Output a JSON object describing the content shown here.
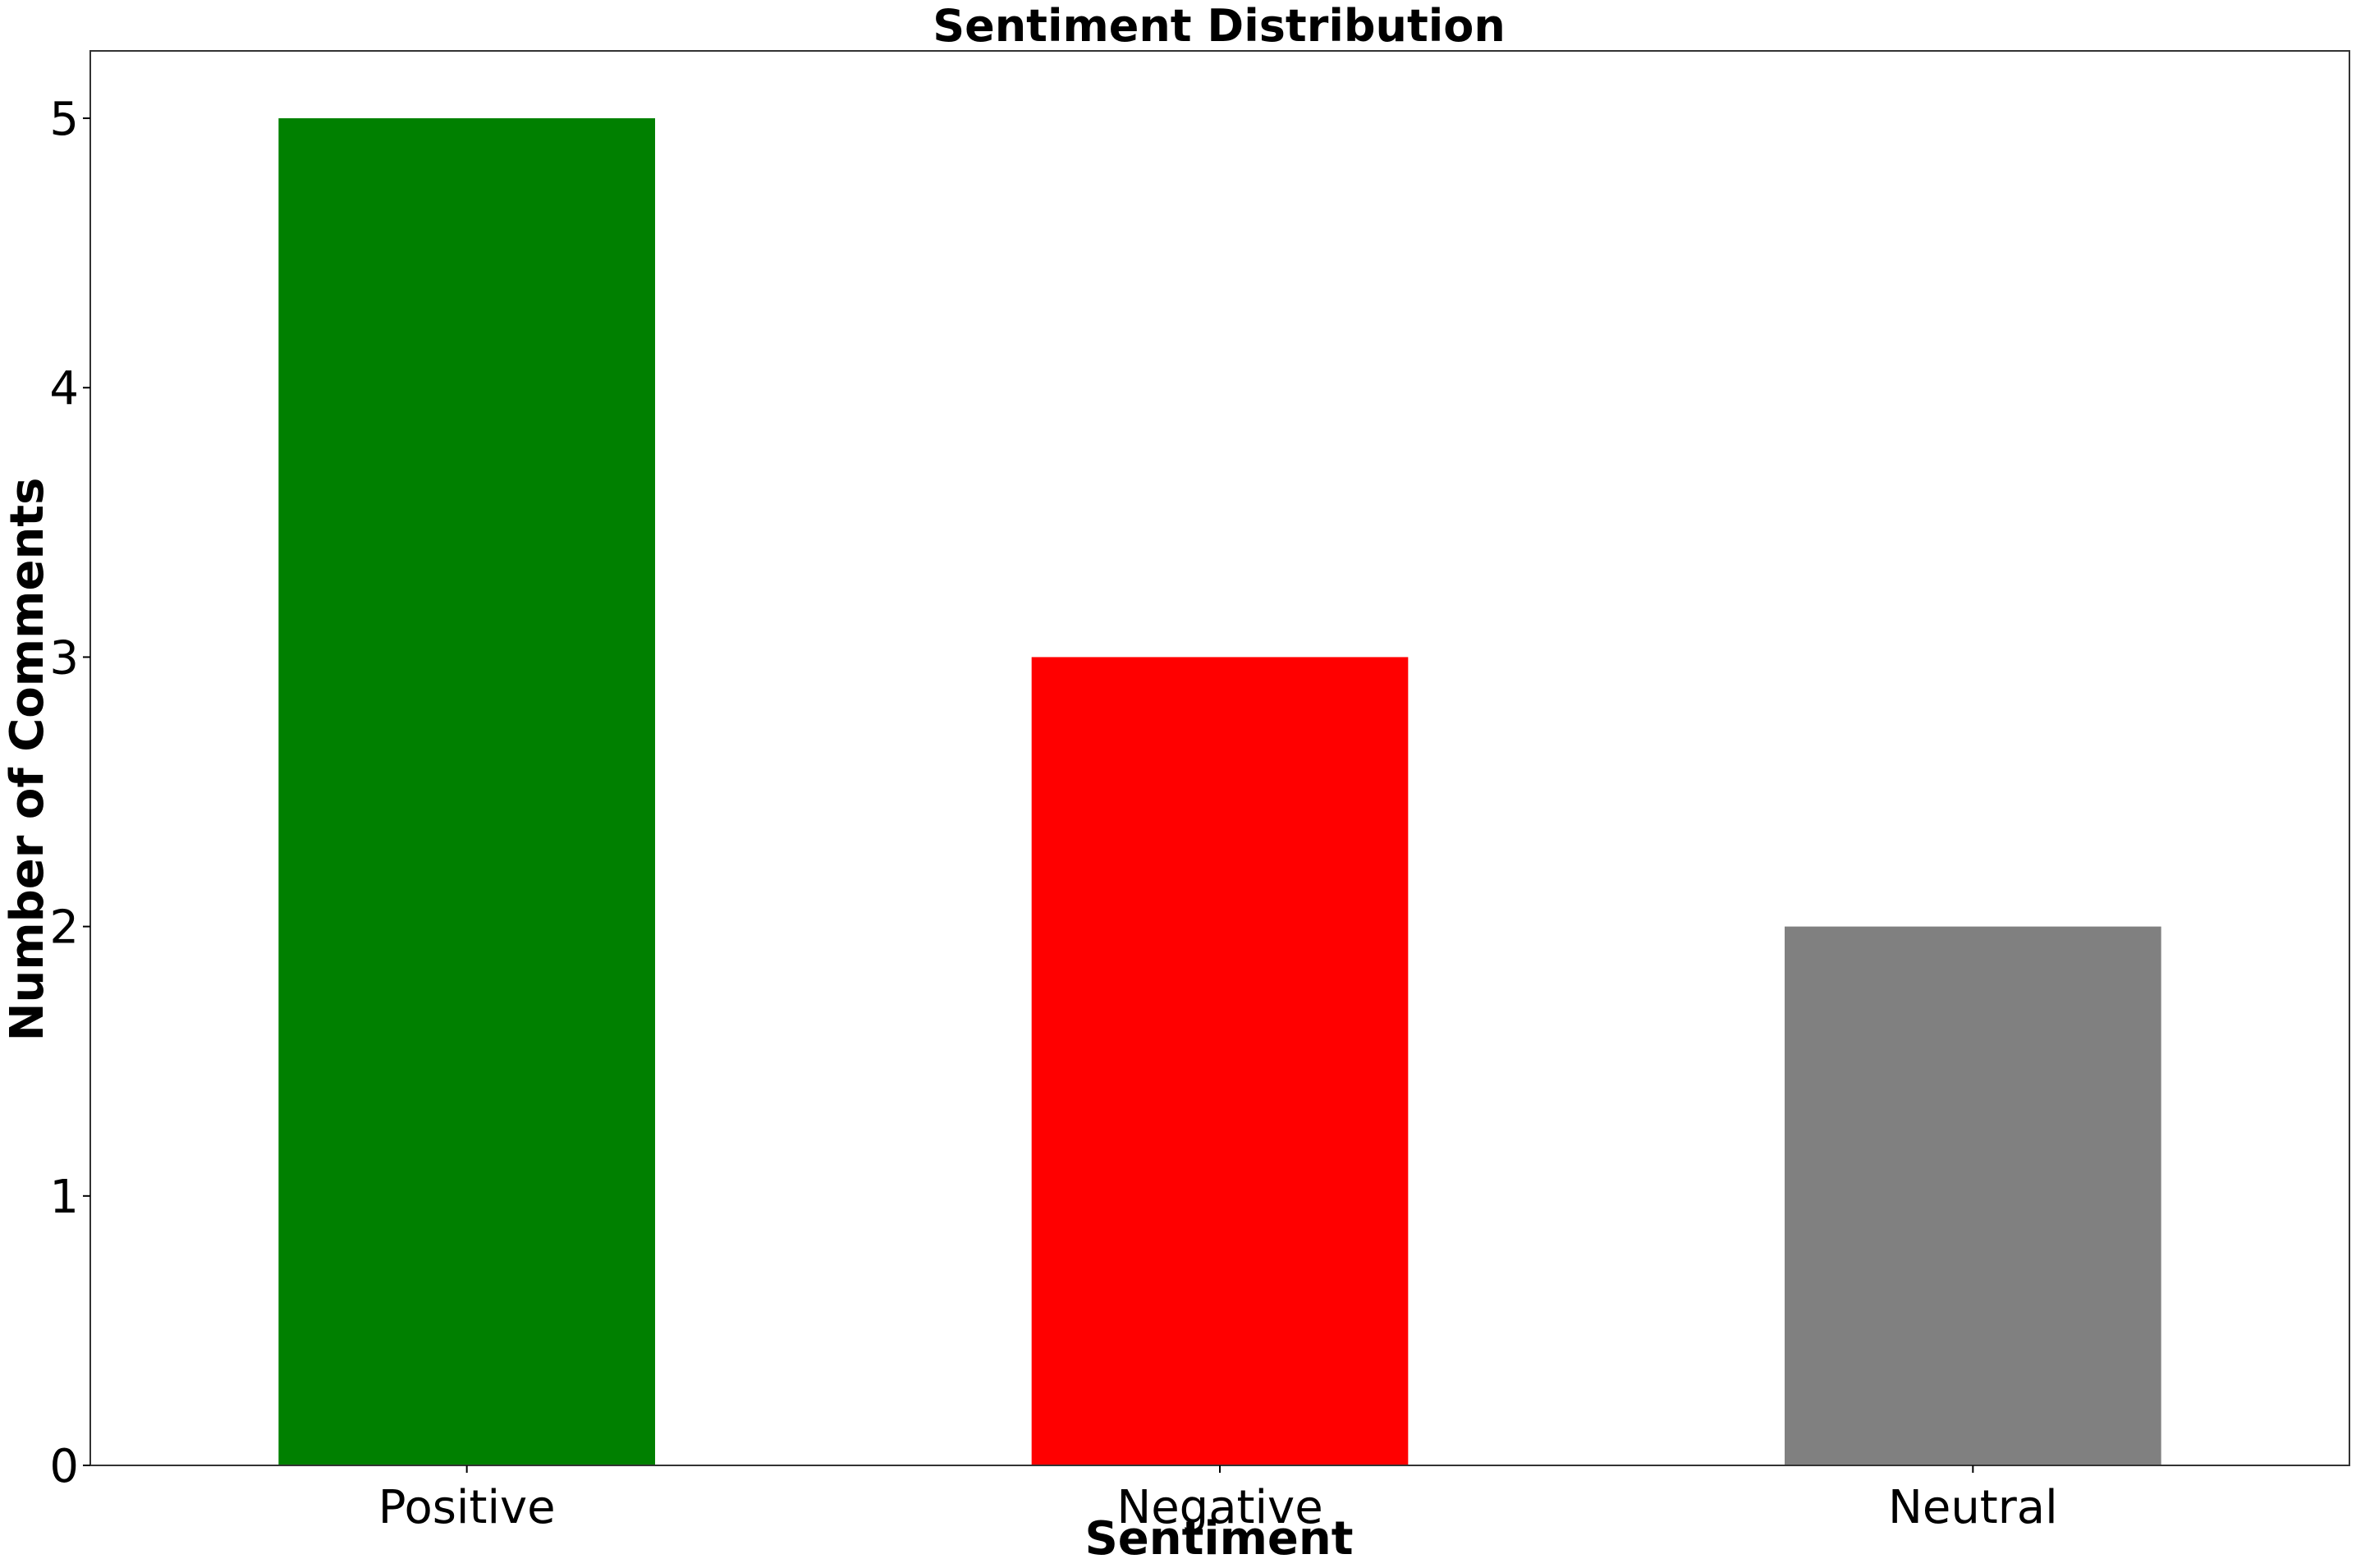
{
  "chart_data": {
    "type": "bar",
    "title": "Sentiment Distribution",
    "xlabel": "Sentiment",
    "ylabel": "Number of Comments",
    "categories": [
      "Positive",
      "Negative",
      "Neutral"
    ],
    "values": [
      5,
      3,
      2
    ],
    "colors": [
      "#008000",
      "#ff0000",
      "#808080"
    ],
    "ylim": [
      0,
      5.25
    ],
    "yticks": [
      0,
      1,
      2,
      3,
      4,
      5
    ],
    "ytick_labels": [
      "0",
      "1",
      "2",
      "3",
      "4",
      "5"
    ],
    "grid": false,
    "legend": "none"
  }
}
